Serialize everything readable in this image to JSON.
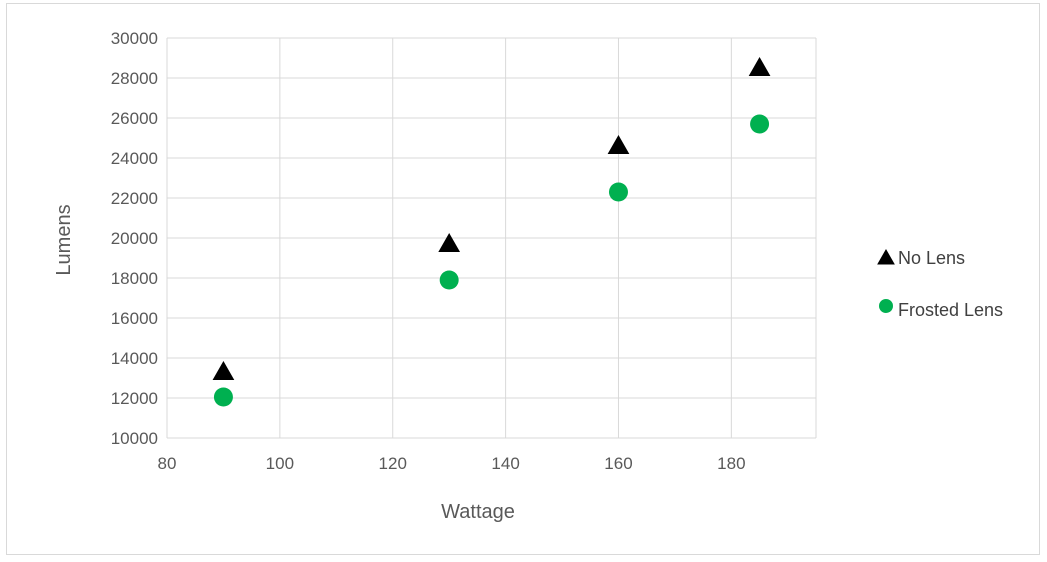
{
  "chart_data": {
    "type": "scatter",
    "title": "",
    "xlabel": "Wattage",
    "ylabel": "Lumens",
    "xlim": [
      80,
      195
    ],
    "ylim": [
      10000,
      30000
    ],
    "x_ticks": [
      80,
      100,
      120,
      140,
      160,
      180
    ],
    "y_ticks": [
      10000,
      12000,
      14000,
      16000,
      18000,
      20000,
      22000,
      24000,
      26000,
      28000,
      30000
    ],
    "grid": true,
    "legend_position": "right",
    "series": [
      {
        "name": "No Lens",
        "marker": "triangle",
        "color": "#000000",
        "points": [
          {
            "x": 90,
            "y": 13300
          },
          {
            "x": 130,
            "y": 19700
          },
          {
            "x": 160,
            "y": 24600
          },
          {
            "x": 185,
            "y": 28500
          }
        ]
      },
      {
        "name": "Frosted Lens",
        "marker": "circle",
        "color": "#00b050",
        "points": [
          {
            "x": 90,
            "y": 12050
          },
          {
            "x": 130,
            "y": 17900
          },
          {
            "x": 160,
            "y": 22300
          },
          {
            "x": 185,
            "y": 25700
          }
        ]
      }
    ]
  }
}
